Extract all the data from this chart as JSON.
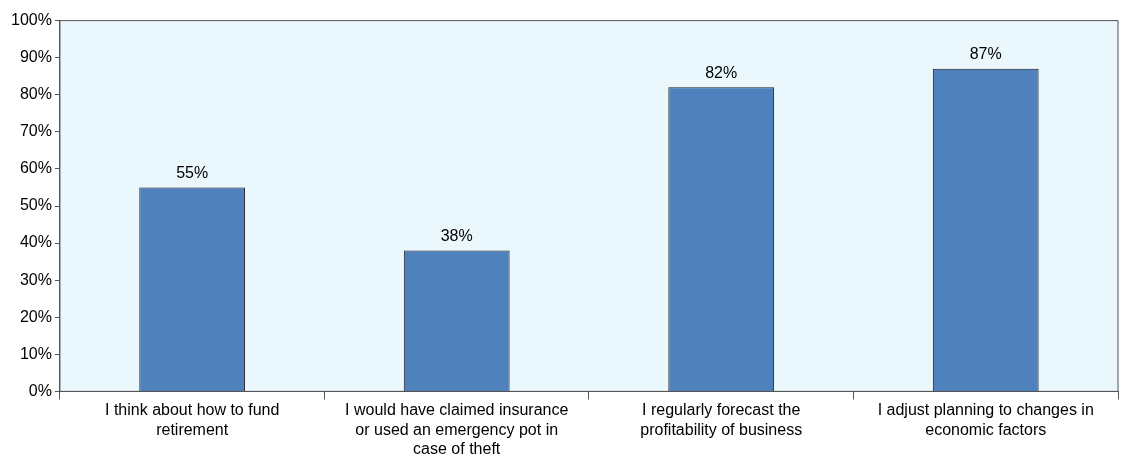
{
  "chart_data": {
    "type": "bar",
    "categories": [
      "I think about how to fund retirement",
      "I would have claimed insurance or used an emergency pot in case of theft",
      "I regularly forecast the profitability of business",
      "I adjust planning to changes in economic factors"
    ],
    "values": [
      55,
      38,
      82,
      87
    ],
    "value_labels": [
      "55%",
      "38%",
      "82%",
      "87%"
    ],
    "color": "#4f81bd",
    "ylim": [
      0,
      100
    ],
    "yticks": [
      {
        "value": 0,
        "label": "0%"
      },
      {
        "value": 10,
        "label": "10%"
      },
      {
        "value": 20,
        "label": "20%"
      },
      {
        "value": 30,
        "label": "30%"
      },
      {
        "value": 40,
        "label": "40%"
      },
      {
        "value": 50,
        "label": "50%"
      },
      {
        "value": 60,
        "label": "60%"
      },
      {
        "value": 70,
        "label": "70%"
      },
      {
        "value": 80,
        "label": "80%"
      },
      {
        "value": 90,
        "label": "90%"
      },
      {
        "value": 100,
        "label": "100%"
      }
    ],
    "grid": false,
    "legend": false
  }
}
